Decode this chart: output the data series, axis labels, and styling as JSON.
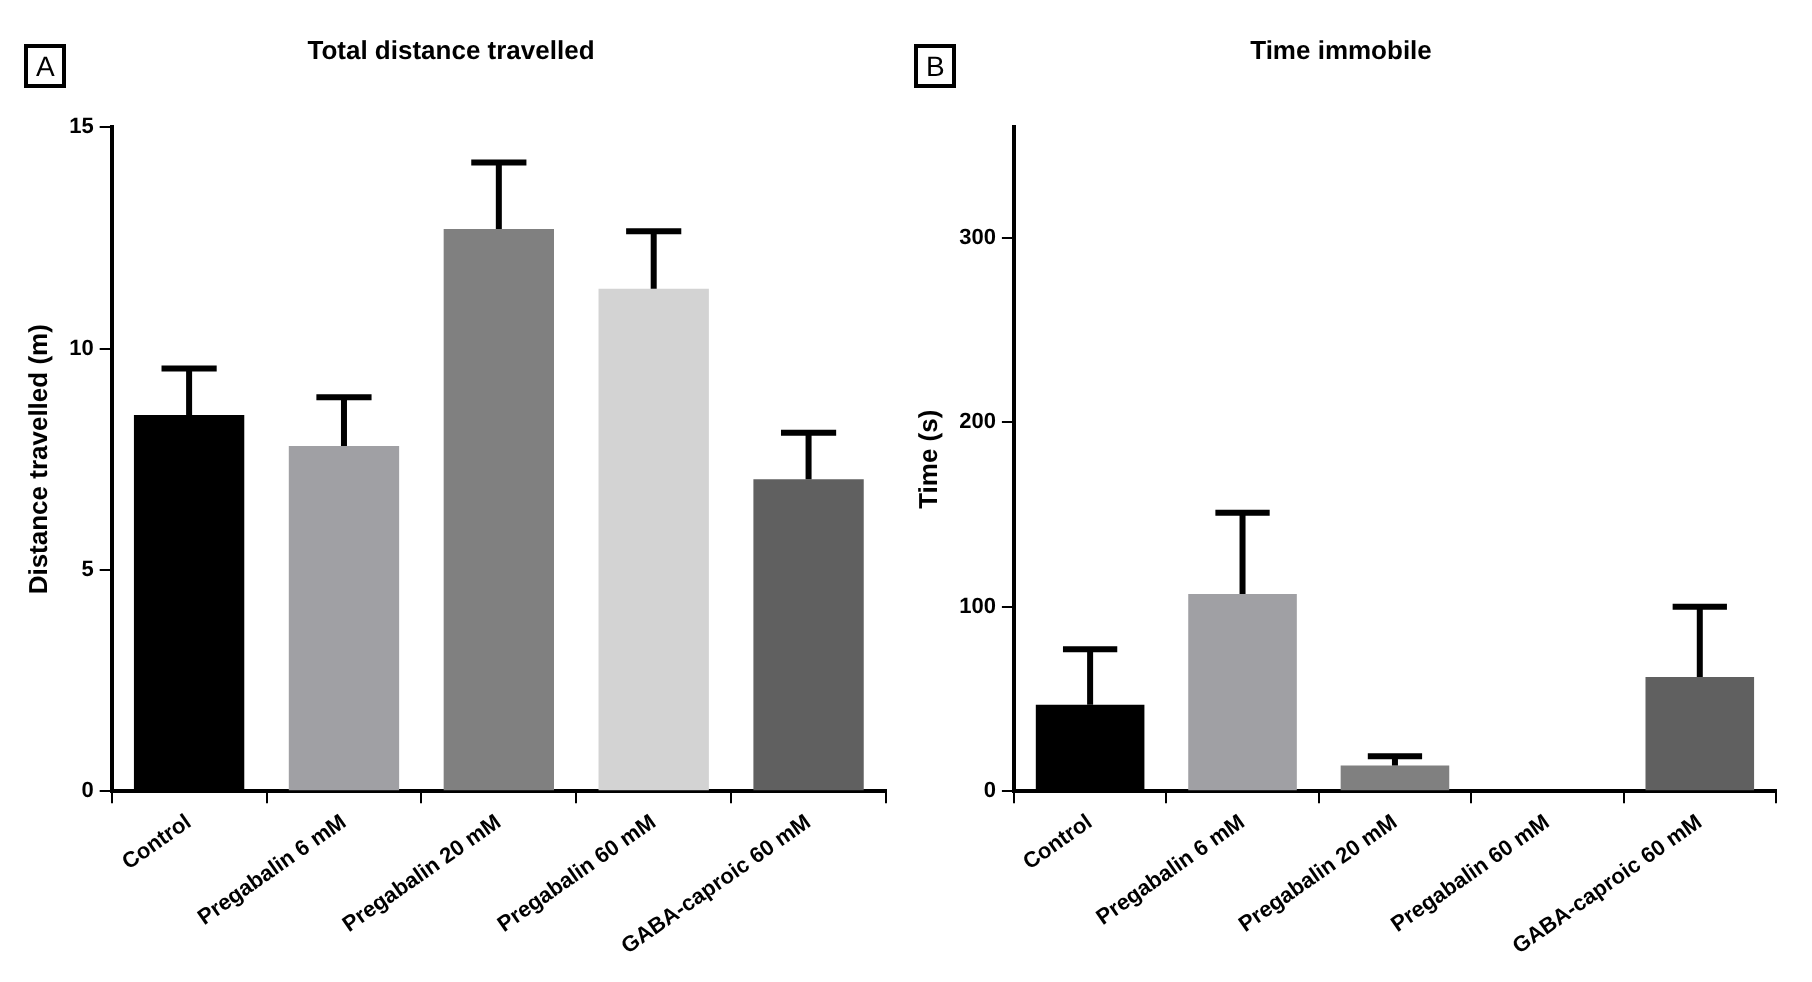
{
  "chart_data": [
    {
      "type": "bar",
      "title": "Total distance travelled",
      "ylabel": "Distance travelled (m)",
      "annotations": [
        "A"
      ],
      "categories": [
        "Control",
        "Pregabalin 6 mM",
        "Pregabalin 20 mM",
        "Pregabalin 60 mM",
        "GABA-caproic 60 mM"
      ],
      "values": [
        8.5,
        7.8,
        12.7,
        11.35,
        7.05
      ],
      "errors": [
        1.05,
        1.1,
        1.5,
        1.3,
        1.05
      ],
      "colors": [
        "#000000",
        "#a0a0a4",
        "#808080",
        "#d3d3d3",
        "#606060"
      ],
      "ylim": [
        0,
        15
      ],
      "yticks": [
        0,
        5,
        10,
        15
      ],
      "grid": false,
      "legend": false
    },
    {
      "type": "bar",
      "title": "Time immobile",
      "ylabel": "Time (s)",
      "annotations": [
        "B"
      ],
      "categories": [
        "Control",
        "Pregabalin 6 mM",
        "Pregabalin 20 mM",
        "Pregabalin 60 mM",
        "GABA-caproic 60 mM"
      ],
      "values": [
        47,
        107,
        14,
        0,
        62
      ],
      "errors": [
        30,
        44,
        5,
        null,
        38
      ],
      "colors": [
        "#000000",
        "#a0a0a4",
        "#808080",
        "#d3d3d3",
        "#606060"
      ],
      "ylim": [
        0,
        360
      ],
      "yticks": [
        0,
        100,
        200,
        300
      ],
      "grid": false,
      "legend": false
    }
  ]
}
